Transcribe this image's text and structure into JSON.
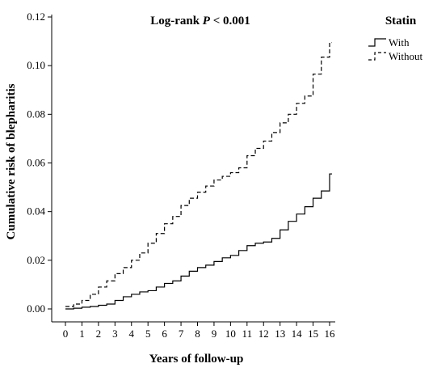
{
  "chart_data": {
    "type": "line",
    "annotation": {
      "prefix": "Log-rank ",
      "italic": "P",
      "suffix": " < 0.001"
    },
    "xlabel": "Years of follow-up",
    "ylabel": "Cumulative risk of blepharitis",
    "xlim": [
      0,
      16
    ],
    "ylim": [
      0,
      0.12
    ],
    "x_ticks": [
      "0",
      "1",
      "2",
      "3",
      "4",
      "5",
      "6",
      "7",
      "8",
      "9",
      "10",
      "11",
      "12",
      "13",
      "14",
      "15",
      "16"
    ],
    "y_ticks": [
      "0.00",
      "0.02",
      "0.04",
      "0.06",
      "0.08",
      "0.10",
      "0.12"
    ],
    "legend": {
      "title": "Statin",
      "position": "top-right"
    },
    "series": [
      {
        "name": "With",
        "style": "solid",
        "color": "#000000",
        "x": [
          0,
          0.5,
          1,
          1.5,
          2,
          2.5,
          3,
          3.5,
          4,
          4.5,
          5,
          5.5,
          6,
          6.5,
          7,
          7.5,
          8,
          8.5,
          9,
          9.5,
          10,
          10.5,
          11,
          11.5,
          12,
          12.5,
          13,
          13.5,
          14,
          14.5,
          15,
          15.5,
          16
        ],
        "values": [
          0.0,
          0.0003,
          0.0007,
          0.001,
          0.0015,
          0.002,
          0.0035,
          0.005,
          0.006,
          0.007,
          0.0075,
          0.009,
          0.0105,
          0.0115,
          0.0135,
          0.0155,
          0.017,
          0.018,
          0.0195,
          0.021,
          0.022,
          0.024,
          0.026,
          0.027,
          0.0275,
          0.029,
          0.0325,
          0.036,
          0.039,
          0.042,
          0.0455,
          0.0485,
          0.0555
        ]
      },
      {
        "name": "Without",
        "style": "dashed",
        "color": "#000000",
        "x": [
          0,
          0.5,
          1,
          1.5,
          2,
          2.5,
          3,
          3.5,
          4,
          4.5,
          5,
          5.5,
          6,
          6.5,
          7,
          7.5,
          8,
          8.5,
          9,
          9.5,
          10,
          10.5,
          11,
          11.5,
          12,
          12.5,
          13,
          13.5,
          14,
          14.5,
          15,
          15.5,
          16
        ],
        "values": [
          0.001,
          0.002,
          0.0035,
          0.006,
          0.009,
          0.0115,
          0.0145,
          0.017,
          0.02,
          0.023,
          0.027,
          0.031,
          0.035,
          0.038,
          0.0425,
          0.0455,
          0.048,
          0.0505,
          0.053,
          0.0545,
          0.056,
          0.058,
          0.063,
          0.066,
          0.069,
          0.0725,
          0.0765,
          0.08,
          0.0845,
          0.0875,
          0.0965,
          0.1035,
          0.1095
        ]
      }
    ]
  }
}
